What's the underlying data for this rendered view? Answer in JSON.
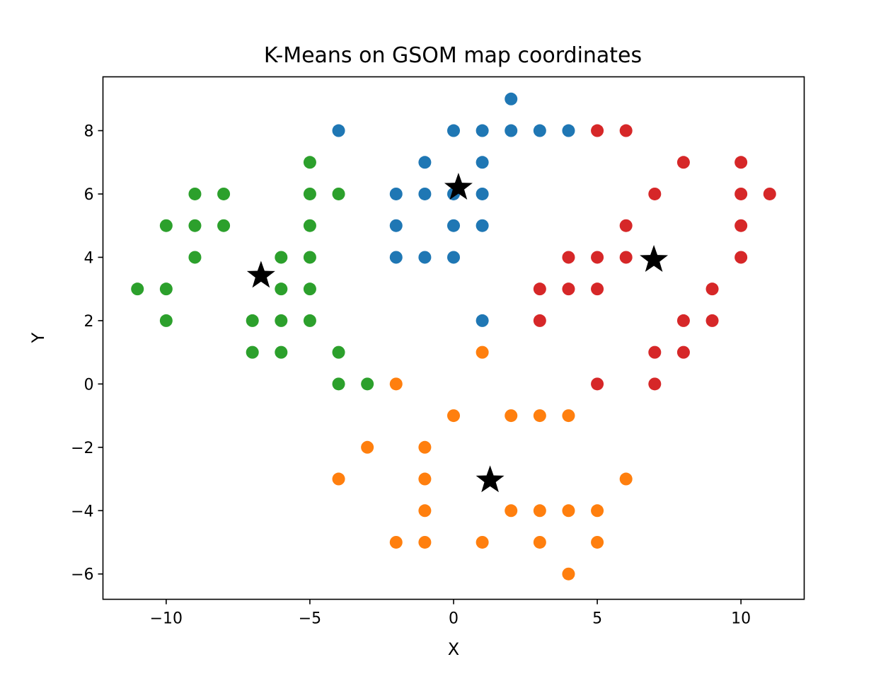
{
  "chart_data": {
    "type": "scatter",
    "title": "K-Means on GSOM map coordinates",
    "xlabel": "X",
    "ylabel": "Y",
    "xlim": [
      -12.2,
      12.2
    ],
    "ylim": [
      -6.8,
      9.7
    ],
    "grid": false,
    "legend": "none",
    "x_ticks": [
      {
        "value": -10,
        "label": "−10"
      },
      {
        "value": -5,
        "label": "−5"
      },
      {
        "value": 0,
        "label": "0"
      },
      {
        "value": 5,
        "label": "5"
      },
      {
        "value": 10,
        "label": "10"
      }
    ],
    "y_ticks": [
      {
        "value": -6,
        "label": "−6"
      },
      {
        "value": -4,
        "label": "−4"
      },
      {
        "value": -2,
        "label": "−2"
      },
      {
        "value": 0,
        "label": "0"
      },
      {
        "value": 2,
        "label": "2"
      },
      {
        "value": 4,
        "label": "4"
      },
      {
        "value": 6,
        "label": "6"
      },
      {
        "value": 8,
        "label": "8"
      }
    ],
    "series": [
      {
        "color": "#1f77b4",
        "points": [
          [
            2,
            9
          ],
          [
            -4,
            8
          ],
          [
            0,
            8
          ],
          [
            1,
            8
          ],
          [
            2,
            8
          ],
          [
            3,
            8
          ],
          [
            4,
            8
          ],
          [
            -1,
            7
          ],
          [
            1,
            7
          ],
          [
            -2,
            6
          ],
          [
            -1,
            6
          ],
          [
            0,
            6
          ],
          [
            1,
            6
          ],
          [
            -2,
            5
          ],
          [
            0,
            5
          ],
          [
            1,
            5
          ],
          [
            -2,
            4
          ],
          [
            -1,
            4
          ],
          [
            0,
            4
          ],
          [
            1,
            2
          ]
        ]
      },
      {
        "color": "#ff7f0e",
        "points": [
          [
            1,
            1
          ],
          [
            -2,
            0
          ],
          [
            0,
            -1
          ],
          [
            2,
            -1
          ],
          [
            3,
            -1
          ],
          [
            4,
            -1
          ],
          [
            -3,
            -2
          ],
          [
            -1,
            -2
          ],
          [
            -4,
            -3
          ],
          [
            -1,
            -3
          ],
          [
            6,
            -3
          ],
          [
            -1,
            -4
          ],
          [
            2,
            -4
          ],
          [
            3,
            -4
          ],
          [
            4,
            -4
          ],
          [
            5,
            -4
          ],
          [
            -2,
            -5
          ],
          [
            -1,
            -5
          ],
          [
            1,
            -5
          ],
          [
            3,
            -5
          ],
          [
            5,
            -5
          ],
          [
            4,
            -6
          ]
        ]
      },
      {
        "color": "#2ca02c",
        "points": [
          [
            -5,
            7
          ],
          [
            -9,
            6
          ],
          [
            -8,
            6
          ],
          [
            -5,
            6
          ],
          [
            -4,
            6
          ],
          [
            -10,
            5
          ],
          [
            -9,
            5
          ],
          [
            -8,
            5
          ],
          [
            -5,
            5
          ],
          [
            -9,
            4
          ],
          [
            -6,
            4
          ],
          [
            -5,
            4
          ],
          [
            -11,
            3
          ],
          [
            -10,
            3
          ],
          [
            -6,
            3
          ],
          [
            -5,
            3
          ],
          [
            -10,
            2
          ],
          [
            -7,
            2
          ],
          [
            -6,
            2
          ],
          [
            -5,
            2
          ],
          [
            -7,
            1
          ],
          [
            -6,
            1
          ],
          [
            -4,
            1
          ],
          [
            -4,
            0
          ],
          [
            -3,
            0
          ]
        ]
      },
      {
        "color": "#d62728",
        "points": [
          [
            5,
            8
          ],
          [
            6,
            8
          ],
          [
            8,
            7
          ],
          [
            10,
            7
          ],
          [
            7,
            6
          ],
          [
            10,
            6
          ],
          [
            11,
            6
          ],
          [
            6,
            5
          ],
          [
            10,
            5
          ],
          [
            4,
            4
          ],
          [
            5,
            4
          ],
          [
            6,
            4
          ],
          [
            10,
            4
          ],
          [
            3,
            3
          ],
          [
            4,
            3
          ],
          [
            5,
            3
          ],
          [
            9,
            3
          ],
          [
            3,
            2
          ],
          [
            8,
            2
          ],
          [
            9,
            2
          ],
          [
            7,
            1
          ],
          [
            8,
            1
          ],
          [
            5,
            0
          ],
          [
            7,
            0
          ]
        ]
      }
    ],
    "centroids": {
      "color": "#000000",
      "marker": "star",
      "points": [
        [
          0.17,
          6.2
        ],
        [
          -6.7,
          3.42
        ],
        [
          6.97,
          3.92
        ],
        [
          1.27,
          -3.04
        ]
      ]
    }
  }
}
